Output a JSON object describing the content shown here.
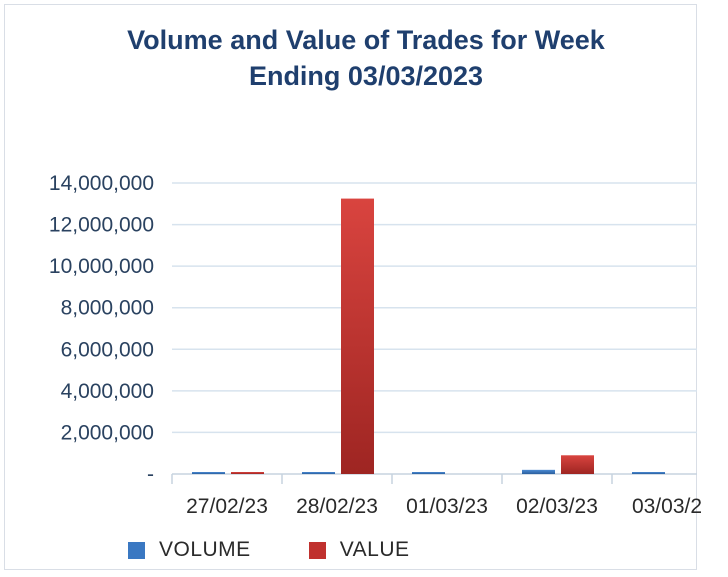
{
  "chart_data": {
    "type": "bar",
    "title_line1": "Volume and Value of Trades for Week",
    "title_line2": "Ending 03/03/2023",
    "categories": [
      "27/02/23",
      "28/02/23",
      "01/03/23",
      "02/03/23",
      "03/03/2"
    ],
    "series": [
      {
        "name": "VOLUME",
        "color": "#3a78c2",
        "values": [
          60000,
          80000,
          50000,
          200000,
          40000
        ]
      },
      {
        "name": "VALUE",
        "color": "#c0312e",
        "values": [
          90000,
          13250000,
          0,
          900000,
          70000
        ]
      }
    ],
    "y_ticks": [
      0,
      2000000,
      4000000,
      6000000,
      8000000,
      10000000,
      12000000,
      14000000
    ],
    "y_tick_labels": [
      "-",
      "2,000,000",
      "4,000,000",
      "6,000,000",
      "8,000,000",
      "10,000,000",
      "12,000,000",
      "14,000,000"
    ],
    "ylim": [
      0,
      14000000
    ],
    "grid": true,
    "legend_position": "bottom"
  }
}
